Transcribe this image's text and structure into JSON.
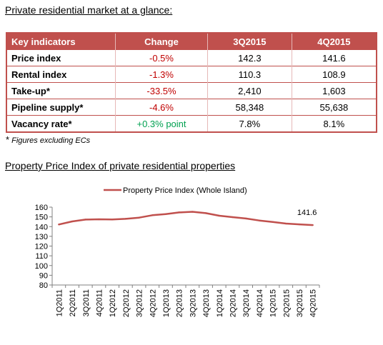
{
  "header": {
    "title": "Private residential market at a glance:"
  },
  "table": {
    "columns": [
      "Key indicators",
      "Change",
      "3Q2015",
      "4Q2015"
    ],
    "rows": [
      {
        "label": "Price index",
        "change": "-0.5%",
        "q3": "142.3",
        "q4": "141.6",
        "sign": "neg"
      },
      {
        "label": "Rental index",
        "change": "-1.3%",
        "q3": "110.3",
        "q4": "108.9",
        "sign": "neg"
      },
      {
        "label": "Take-up*",
        "change": "-33.5%",
        "q3": "2,410",
        "q4": "1,603",
        "sign": "neg"
      },
      {
        "label": "Pipeline supply*",
        "change": "-4.6%",
        "q3": "58,348",
        "q4": "55,638",
        "sign": "neg"
      },
      {
        "label": "Vacancy rate*",
        "change": "+0.3% point",
        "q3": "7.8%",
        "q4": "8.1%",
        "sign": "pos"
      }
    ]
  },
  "footnote": {
    "star": "*",
    "text": "Figures excluding ECs"
  },
  "chart_title": "Property Price Index of private residential properties",
  "chart_data": {
    "type": "line",
    "categories": [
      "1Q2011",
      "2Q2011",
      "3Q2011",
      "4Q2011",
      "1Q2012",
      "2Q2012",
      "3Q2012",
      "4Q2012",
      "1Q2013",
      "2Q2013",
      "3Q2013",
      "4Q2013",
      "1Q2014",
      "2Q2014",
      "3Q2014",
      "4Q2014",
      "1Q2015",
      "2Q2015",
      "3Q2015",
      "4Q2015"
    ],
    "series": [
      {
        "name": "Property Price Index (Whole Island)",
        "values": [
          142.2,
          145.3,
          147.2,
          147.5,
          147.3,
          148.0,
          149.2,
          151.7,
          152.9,
          154.6,
          155.2,
          153.8,
          151.2,
          149.7,
          148.3,
          146.3,
          144.8,
          143.1,
          142.3,
          141.6
        ]
      }
    ],
    "ylim": [
      80,
      160
    ],
    "yticks": [
      80,
      90,
      100,
      110,
      120,
      130,
      140,
      150,
      160
    ],
    "grid": false,
    "legend": "top-center",
    "annotation": {
      "category": "4Q2015",
      "text": "141.6"
    },
    "line_color": "#c0504d"
  }
}
